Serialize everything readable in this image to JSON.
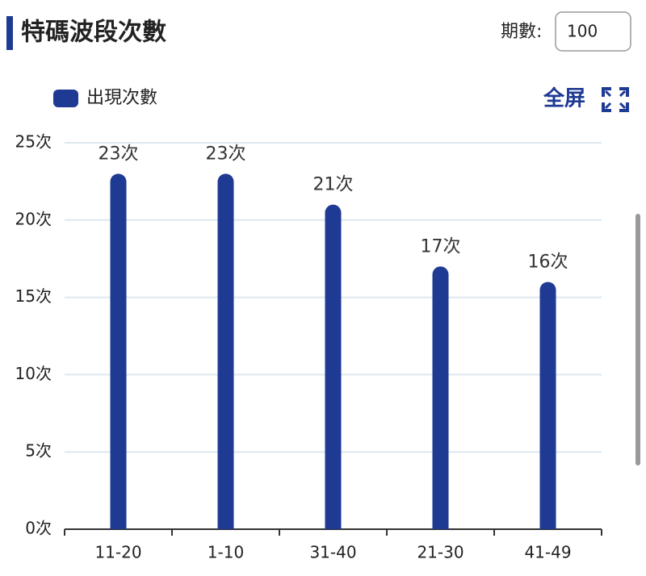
{
  "header": {
    "title": "特碼波段次數",
    "period_label": "期數:",
    "period_value": "100",
    "fullscreen": "全屏"
  },
  "chart_data": {
    "type": "bar",
    "categories": [
      "11-20",
      "1-10",
      "31-40",
      "21-30",
      "41-49"
    ],
    "series": [
      {
        "name": "出現次數",
        "color": "#1e3a93",
        "values": [
          23,
          23,
          21,
          17,
          16
        ],
        "value_labels": [
          "23次",
          "23次",
          "21次",
          "17次",
          "16次"
        ]
      }
    ],
    "ylim": [
      0,
      25
    ],
    "yticks": [
      {
        "value": 0,
        "label": "0次"
      },
      {
        "value": 5,
        "label": "5次"
      },
      {
        "value": 10,
        "label": "10次"
      },
      {
        "value": 15,
        "label": "15次"
      },
      {
        "value": 20,
        "label": "20次"
      },
      {
        "value": 25,
        "label": "25次"
      }
    ],
    "grid": true
  }
}
